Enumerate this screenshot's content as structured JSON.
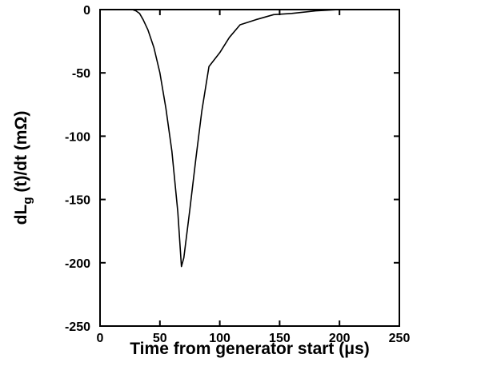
{
  "chart_data": {
    "type": "line",
    "title": "",
    "xlabel": "Time from generator start (μs)",
    "ylabel": {
      "prefix": "dL",
      "subscript": "g",
      "suffix": " (t)/dt (mΩ)"
    },
    "xlim": [
      0,
      250
    ],
    "ylim": [
      -250,
      0
    ],
    "x_ticks": [
      0,
      50,
      100,
      150,
      200,
      250
    ],
    "y_ticks": [
      0,
      -50,
      -100,
      -150,
      -200,
      -250
    ],
    "grid": false,
    "legend": "none",
    "line_color": "#000000",
    "series": [
      {
        "x": [
          0,
          27,
          30,
          33,
          36,
          40,
          45,
          50,
          55,
          60,
          65,
          68,
          70,
          75,
          80,
          85,
          91,
          100,
          108,
          117,
          130,
          145,
          160,
          180,
          200,
          250
        ],
        "y": [
          0,
          0,
          -1,
          -3,
          -8,
          -16,
          -30,
          -50,
          -78,
          -112,
          -160,
          -203,
          -196,
          -158,
          -118,
          -80,
          -45,
          -34,
          -22,
          -12,
          -8,
          -4,
          -3,
          -1,
          0,
          0
        ]
      }
    ]
  }
}
